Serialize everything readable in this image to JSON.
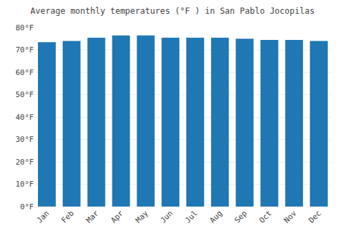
{
  "chart_data": {
    "type": "bar",
    "title": "Average monthly temperatures (°F ) in San Pablo Jocopilas",
    "categories": [
      "Jan",
      "Feb",
      "Mar",
      "Apr",
      "May",
      "Jun",
      "Jul",
      "Aug",
      "Sep",
      "Oct",
      "Nov",
      "Dec"
    ],
    "values": [
      73.5,
      74.0,
      75.5,
      76.5,
      76.5,
      75.5,
      75.5,
      75.5,
      75.0,
      74.5,
      74.5,
      74.0
    ],
    "ylim": [
      0,
      80
    ],
    "yticks": [
      {
        "value": 0,
        "label": "0°F"
      },
      {
        "value": 10,
        "label": "10°F"
      },
      {
        "value": 20,
        "label": "20°F"
      },
      {
        "value": 30,
        "label": "30°F"
      },
      {
        "value": 40,
        "label": "40°F"
      },
      {
        "value": 50,
        "label": "50°F"
      },
      {
        "value": 60,
        "label": "60°F"
      },
      {
        "value": 70,
        "label": "70°F"
      },
      {
        "value": 80,
        "label": "80°F"
      }
    ],
    "grid": true
  }
}
